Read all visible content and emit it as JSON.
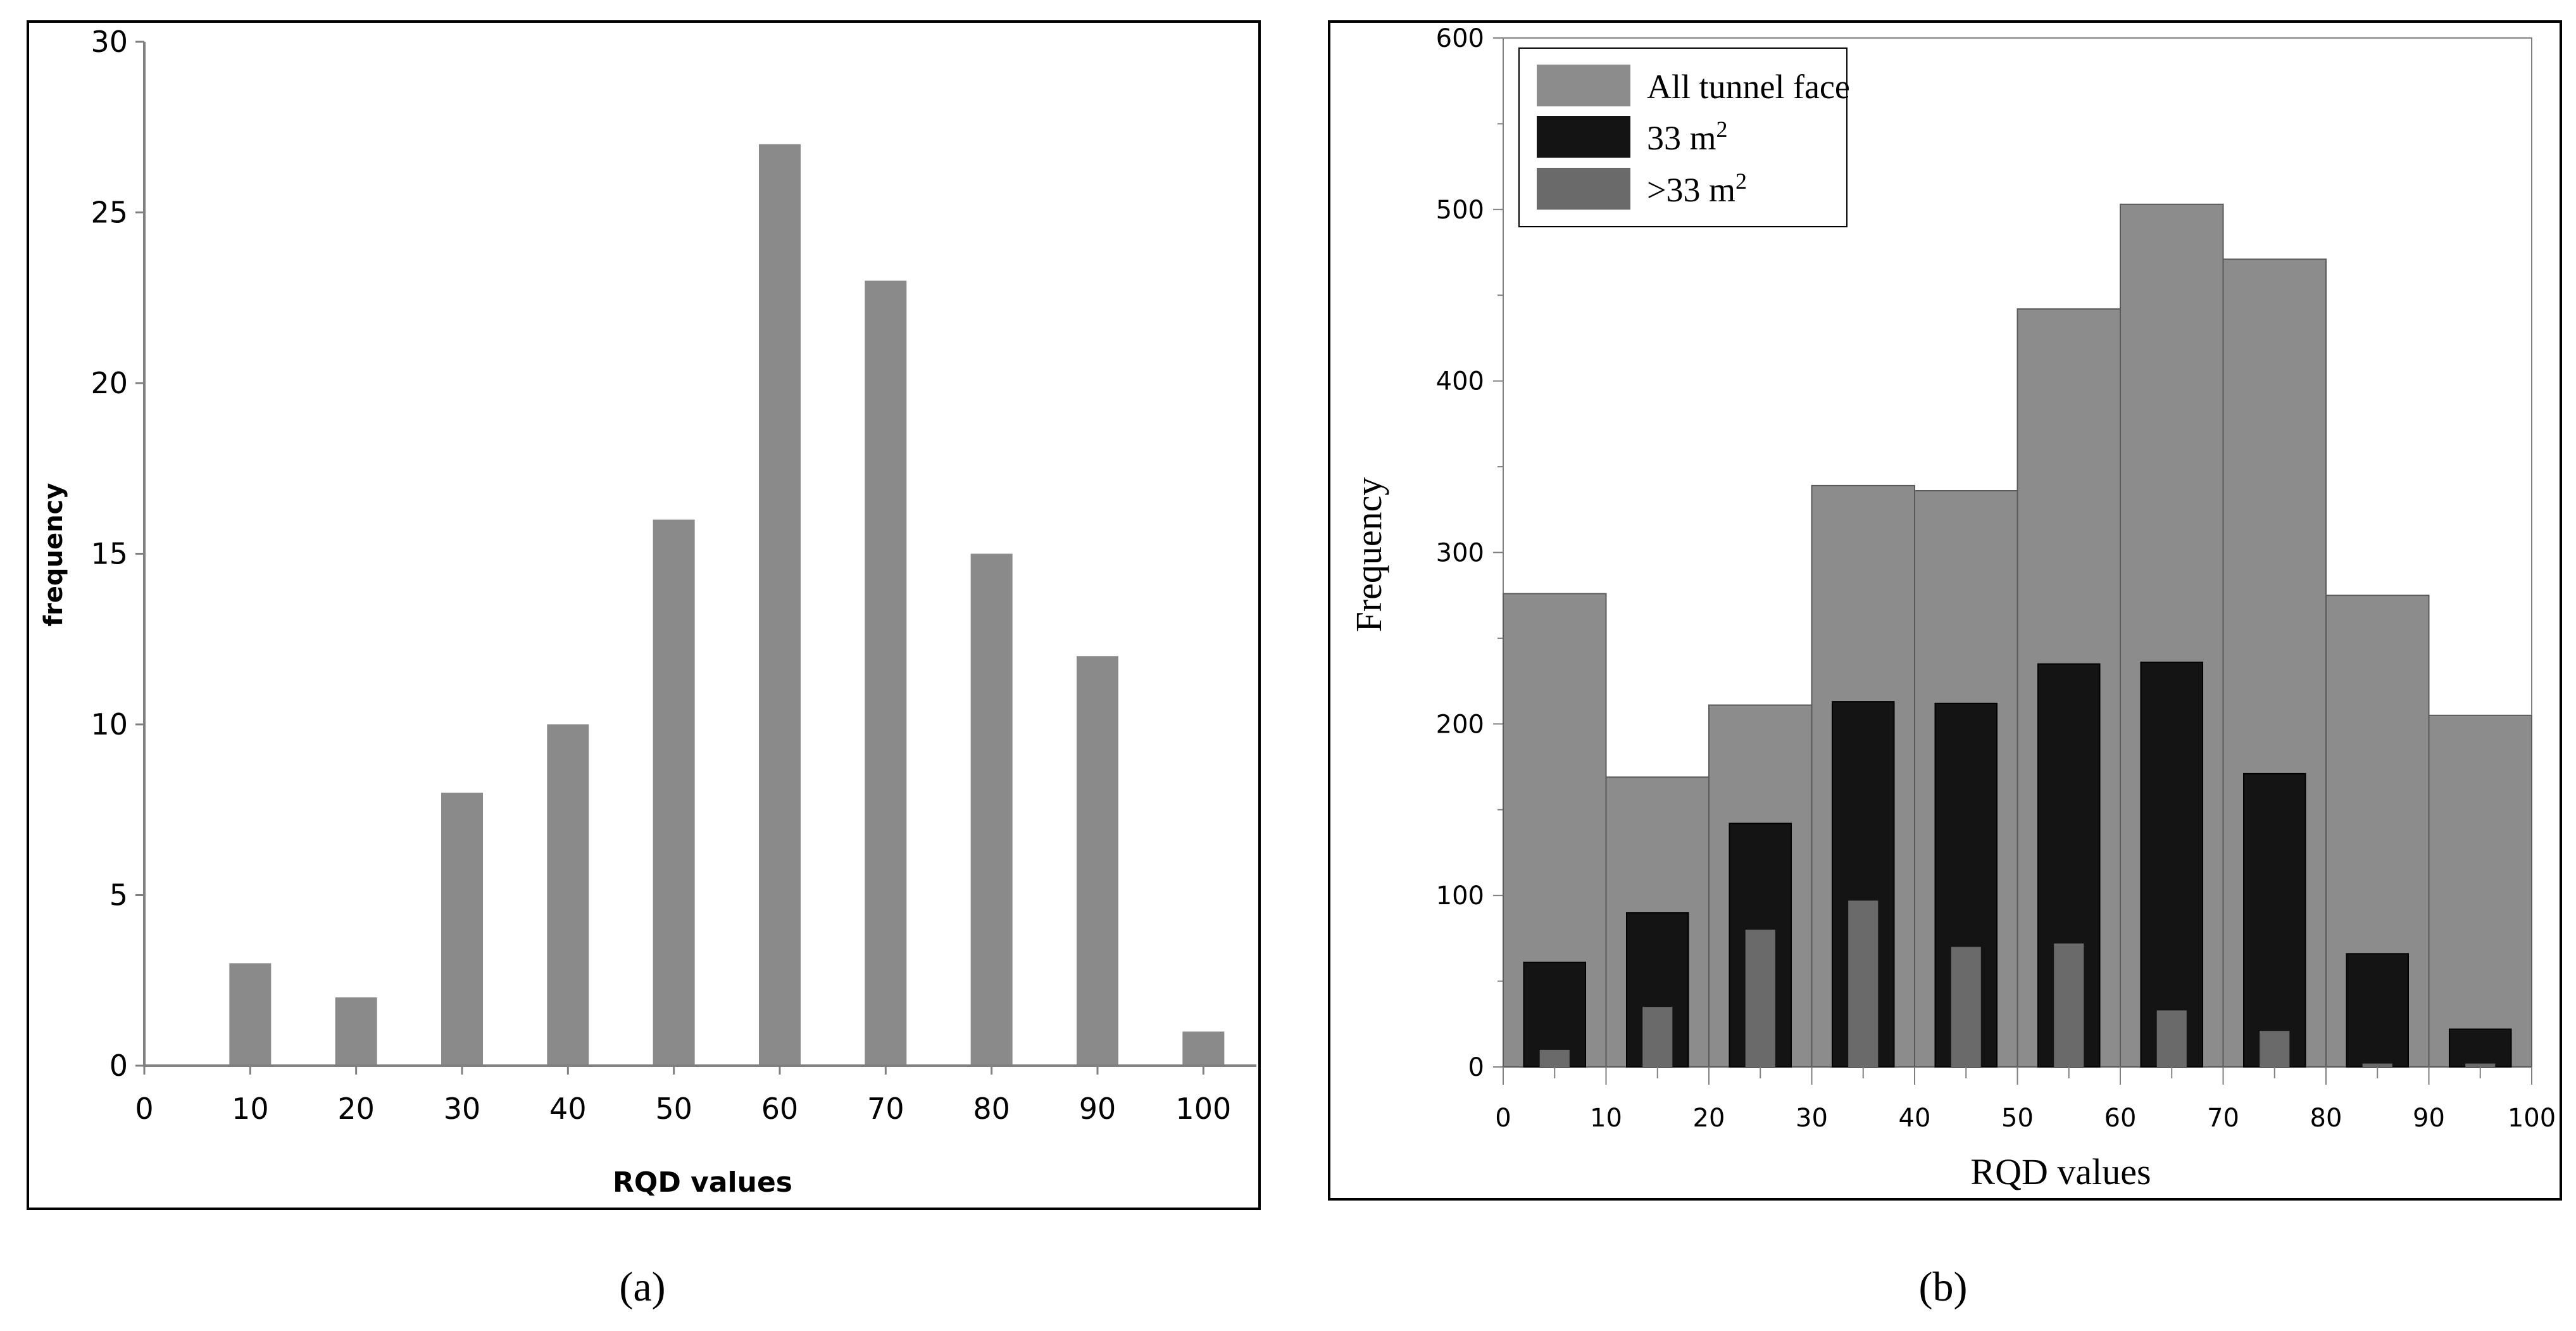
{
  "colors": {
    "bar_a": "#8a8a8a",
    "all_face": "#8c8c8c",
    "m33": "#141414",
    "gt33": "#6a6a6a",
    "axis": "#808080",
    "frame": "#000000",
    "text": "#000000"
  },
  "chart_data": [
    {
      "type": "bar",
      "panel_label": "(a)",
      "title": "",
      "xlabel": "RQD values",
      "ylabel": "frequency",
      "x_ticks": [
        "0",
        "10",
        "20",
        "30",
        "40",
        "50",
        "60",
        "70",
        "80",
        "90",
        "100"
      ],
      "y_ticks": [
        "0",
        "5",
        "10",
        "15",
        "20",
        "25",
        "30"
      ],
      "xlim": [
        0,
        105
      ],
      "ylim": [
        0,
        30
      ],
      "categories": [
        10,
        20,
        30,
        40,
        50,
        60,
        70,
        80,
        90,
        100
      ],
      "values": [
        3,
        2,
        8,
        10,
        16,
        27,
        23,
        15,
        12,
        1
      ]
    },
    {
      "type": "bar",
      "panel_label": "(b)",
      "title": "",
      "xlabel": "RQD values",
      "ylabel": "Frequency",
      "x_ticks": [
        "0",
        "10",
        "20",
        "30",
        "40",
        "50",
        "60",
        "70",
        "80",
        "90",
        "100"
      ],
      "y_ticks": [
        "0",
        "100",
        "200",
        "300",
        "400",
        "500",
        "600"
      ],
      "xlim": [
        0,
        100
      ],
      "ylim": [
        0,
        600
      ],
      "legend_position": "top-left",
      "bin_edges": [
        0,
        10,
        20,
        30,
        40,
        50,
        60,
        70,
        80,
        90,
        100
      ],
      "series": [
        {
          "name": "All tunnel face",
          "values": [
            276,
            169,
            211,
            339,
            336,
            442,
            503,
            471,
            275,
            205
          ]
        },
        {
          "name": "33 m",
          "sup": "2",
          "values": [
            61,
            90,
            142,
            213,
            212,
            235,
            236,
            171,
            66,
            22
          ]
        },
        {
          "name": ">33 m",
          "sup": "2",
          "values": [
            10,
            35,
            80,
            97,
            70,
            72,
            33,
            21,
            2,
            2
          ]
        }
      ]
    }
  ]
}
